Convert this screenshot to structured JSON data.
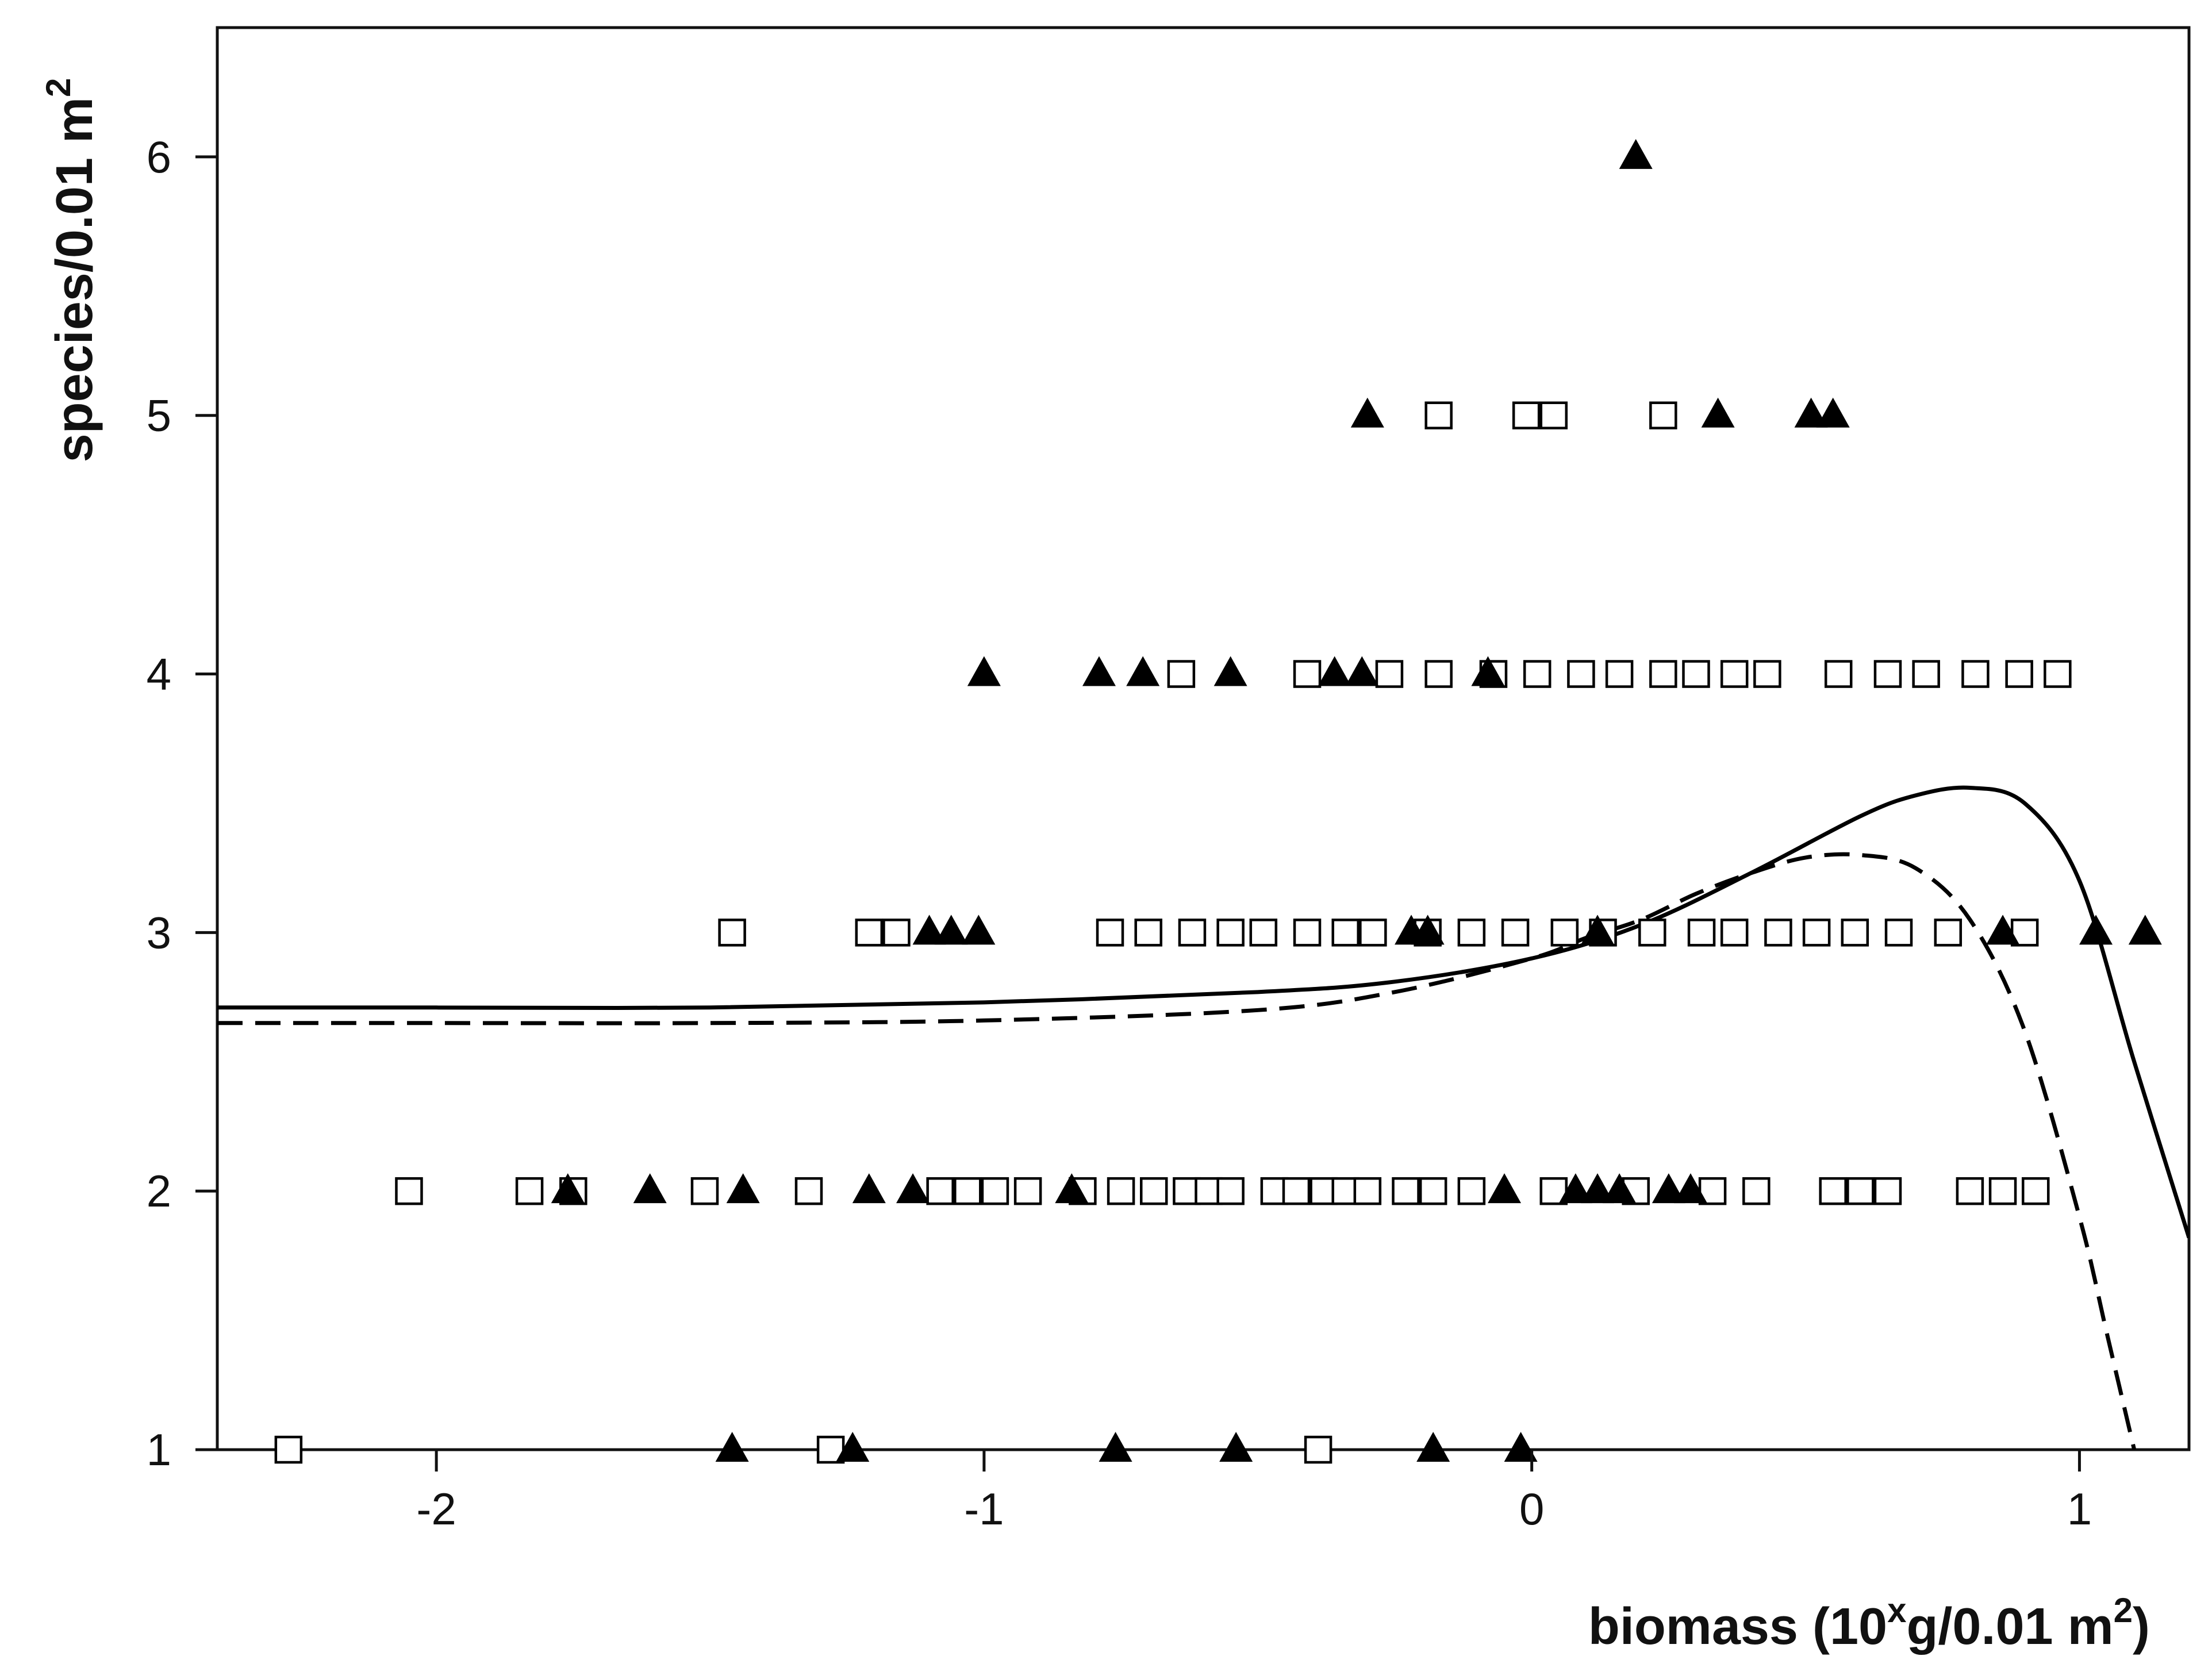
{
  "chart_data": {
    "type": "scatter",
    "title": "",
    "xlabel": {
      "prefix": "biomass (10",
      "sup1": "x",
      "middle": "g/0.01 m",
      "sup2": "2",
      "suffix": ")"
    },
    "ylabel": {
      "main": "species/0.01 m",
      "sup": "2"
    },
    "xlim": [
      -2.4,
      1.2
    ],
    "ylim": [
      1,
      6.5
    ],
    "xticks": [
      -2,
      -1,
      0,
      1
    ],
    "xtick_labels": [
      "-2",
      "-1",
      "0",
      "1"
    ],
    "yticks": [
      1,
      2,
      3,
      4,
      5,
      6
    ],
    "ytick_labels": [
      "1",
      "2",
      "3",
      "4",
      "5",
      "6"
    ],
    "grid": false,
    "legend": "none",
    "colors": {
      "axis": "#111111",
      "marker_fill_open": "#ffffff",
      "marker_fill_solid": "#000000",
      "line": "#000000"
    },
    "series": [
      {
        "marker": "open-square",
        "points": [
          [
            -2.27,
            1
          ],
          [
            -1.28,
            1
          ],
          [
            -0.39,
            1
          ],
          [
            -2.05,
            2
          ],
          [
            -1.83,
            2
          ],
          [
            -1.75,
            2
          ],
          [
            -1.51,
            2
          ],
          [
            -1.32,
            2
          ],
          [
            -1.08,
            2
          ],
          [
            -1.03,
            2
          ],
          [
            -0.98,
            2
          ],
          [
            -0.92,
            2
          ],
          [
            -0.82,
            2
          ],
          [
            -0.75,
            2
          ],
          [
            -0.69,
            2
          ],
          [
            -0.63,
            2
          ],
          [
            -0.59,
            2
          ],
          [
            -0.55,
            2
          ],
          [
            -0.47,
            2
          ],
          [
            -0.43,
            2
          ],
          [
            -0.38,
            2
          ],
          [
            -0.34,
            2
          ],
          [
            -0.3,
            2
          ],
          [
            -0.23,
            2
          ],
          [
            -0.18,
            2
          ],
          [
            -0.11,
            2
          ],
          [
            0.04,
            2
          ],
          [
            0.19,
            2
          ],
          [
            0.33,
            2
          ],
          [
            0.41,
            2
          ],
          [
            0.55,
            2
          ],
          [
            0.6,
            2
          ],
          [
            0.65,
            2
          ],
          [
            0.8,
            2
          ],
          [
            0.86,
            2
          ],
          [
            0.92,
            2
          ],
          [
            -1.46,
            3
          ],
          [
            -1.21,
            3
          ],
          [
            -1.16,
            3
          ],
          [
            -0.77,
            3
          ],
          [
            -0.7,
            3
          ],
          [
            -0.62,
            3
          ],
          [
            -0.55,
            3
          ],
          [
            -0.49,
            3
          ],
          [
            -0.41,
            3
          ],
          [
            -0.34,
            3
          ],
          [
            -0.29,
            3
          ],
          [
            -0.19,
            3
          ],
          [
            -0.11,
            3
          ],
          [
            -0.03,
            3
          ],
          [
            0.06,
            3
          ],
          [
            0.13,
            3
          ],
          [
            0.22,
            3
          ],
          [
            0.31,
            3
          ],
          [
            0.37,
            3
          ],
          [
            0.45,
            3
          ],
          [
            0.52,
            3
          ],
          [
            0.59,
            3
          ],
          [
            0.67,
            3
          ],
          [
            0.76,
            3
          ],
          [
            0.9,
            3
          ],
          [
            -0.64,
            4
          ],
          [
            -0.41,
            4
          ],
          [
            -0.26,
            4
          ],
          [
            -0.17,
            4
          ],
          [
            -0.07,
            4
          ],
          [
            0.01,
            4
          ],
          [
            0.09,
            4
          ],
          [
            0.16,
            4
          ],
          [
            0.24,
            4
          ],
          [
            0.3,
            4
          ],
          [
            0.37,
            4
          ],
          [
            0.43,
            4
          ],
          [
            0.56,
            4
          ],
          [
            0.65,
            4
          ],
          [
            0.72,
            4
          ],
          [
            0.81,
            4
          ],
          [
            0.89,
            4
          ],
          [
            0.96,
            4
          ],
          [
            -0.17,
            5
          ],
          [
            -0.01,
            5
          ],
          [
            0.04,
            5
          ],
          [
            0.24,
            5
          ]
        ]
      },
      {
        "marker": "filled-triangle",
        "points": [
          [
            -1.46,
            1
          ],
          [
            -1.24,
            1
          ],
          [
            -0.76,
            1
          ],
          [
            -0.54,
            1
          ],
          [
            -0.18,
            1
          ],
          [
            -0.02,
            1
          ],
          [
            -1.76,
            2
          ],
          [
            -1.61,
            2
          ],
          [
            -1.44,
            2
          ],
          [
            -1.21,
            2
          ],
          [
            -1.13,
            2
          ],
          [
            -0.84,
            2
          ],
          [
            -0.05,
            2
          ],
          [
            0.08,
            2
          ],
          [
            0.12,
            2
          ],
          [
            0.16,
            2
          ],
          [
            0.25,
            2
          ],
          [
            0.29,
            2
          ],
          [
            -1.1,
            3
          ],
          [
            -1.06,
            3
          ],
          [
            -1.01,
            3
          ],
          [
            -0.22,
            3
          ],
          [
            -0.19,
            3
          ],
          [
            0.12,
            3
          ],
          [
            0.86,
            3
          ],
          [
            1.03,
            3
          ],
          [
            1.12,
            3
          ],
          [
            -1.0,
            4
          ],
          [
            -0.79,
            4
          ],
          [
            -0.71,
            4
          ],
          [
            -0.55,
            4
          ],
          [
            -0.36,
            4
          ],
          [
            -0.31,
            4
          ],
          [
            -0.08,
            4
          ],
          [
            -0.3,
            5
          ],
          [
            0.34,
            5
          ],
          [
            0.51,
            5
          ],
          [
            0.55,
            5
          ],
          [
            0.19,
            6
          ]
        ]
      },
      {
        "marker": "none",
        "line_style": "solid",
        "points": [
          [
            -2.4,
            2.71
          ],
          [
            -2.0,
            2.71
          ],
          [
            -1.5,
            2.71
          ],
          [
            -1.0,
            2.73
          ],
          [
            -0.5,
            2.77
          ],
          [
            -0.25,
            2.81
          ],
          [
            0.0,
            2.9
          ],
          [
            0.2,
            3.03
          ],
          [
            0.4,
            3.23
          ],
          [
            0.6,
            3.45
          ],
          [
            0.7,
            3.53
          ],
          [
            0.8,
            3.56
          ],
          [
            0.9,
            3.5
          ],
          [
            1.0,
            3.2
          ],
          [
            1.1,
            2.5
          ],
          [
            1.2,
            1.82
          ]
        ]
      },
      {
        "marker": "none",
        "line_style": "dashed",
        "points": [
          [
            -2.4,
            2.65
          ],
          [
            -2.0,
            2.65
          ],
          [
            -1.5,
            2.65
          ],
          [
            -1.0,
            2.66
          ],
          [
            -0.5,
            2.7
          ],
          [
            -0.25,
            2.77
          ],
          [
            0.0,
            2.9
          ],
          [
            0.1,
            2.98
          ],
          [
            0.2,
            3.05
          ],
          [
            0.3,
            3.15
          ],
          [
            0.4,
            3.23
          ],
          [
            0.5,
            3.29
          ],
          [
            0.6,
            3.3
          ],
          [
            0.7,
            3.25
          ],
          [
            0.8,
            3.05
          ],
          [
            0.9,
            2.62
          ],
          [
            1.0,
            1.9
          ],
          [
            1.05,
            1.45
          ],
          [
            1.1,
            1.0
          ]
        ]
      }
    ]
  }
}
